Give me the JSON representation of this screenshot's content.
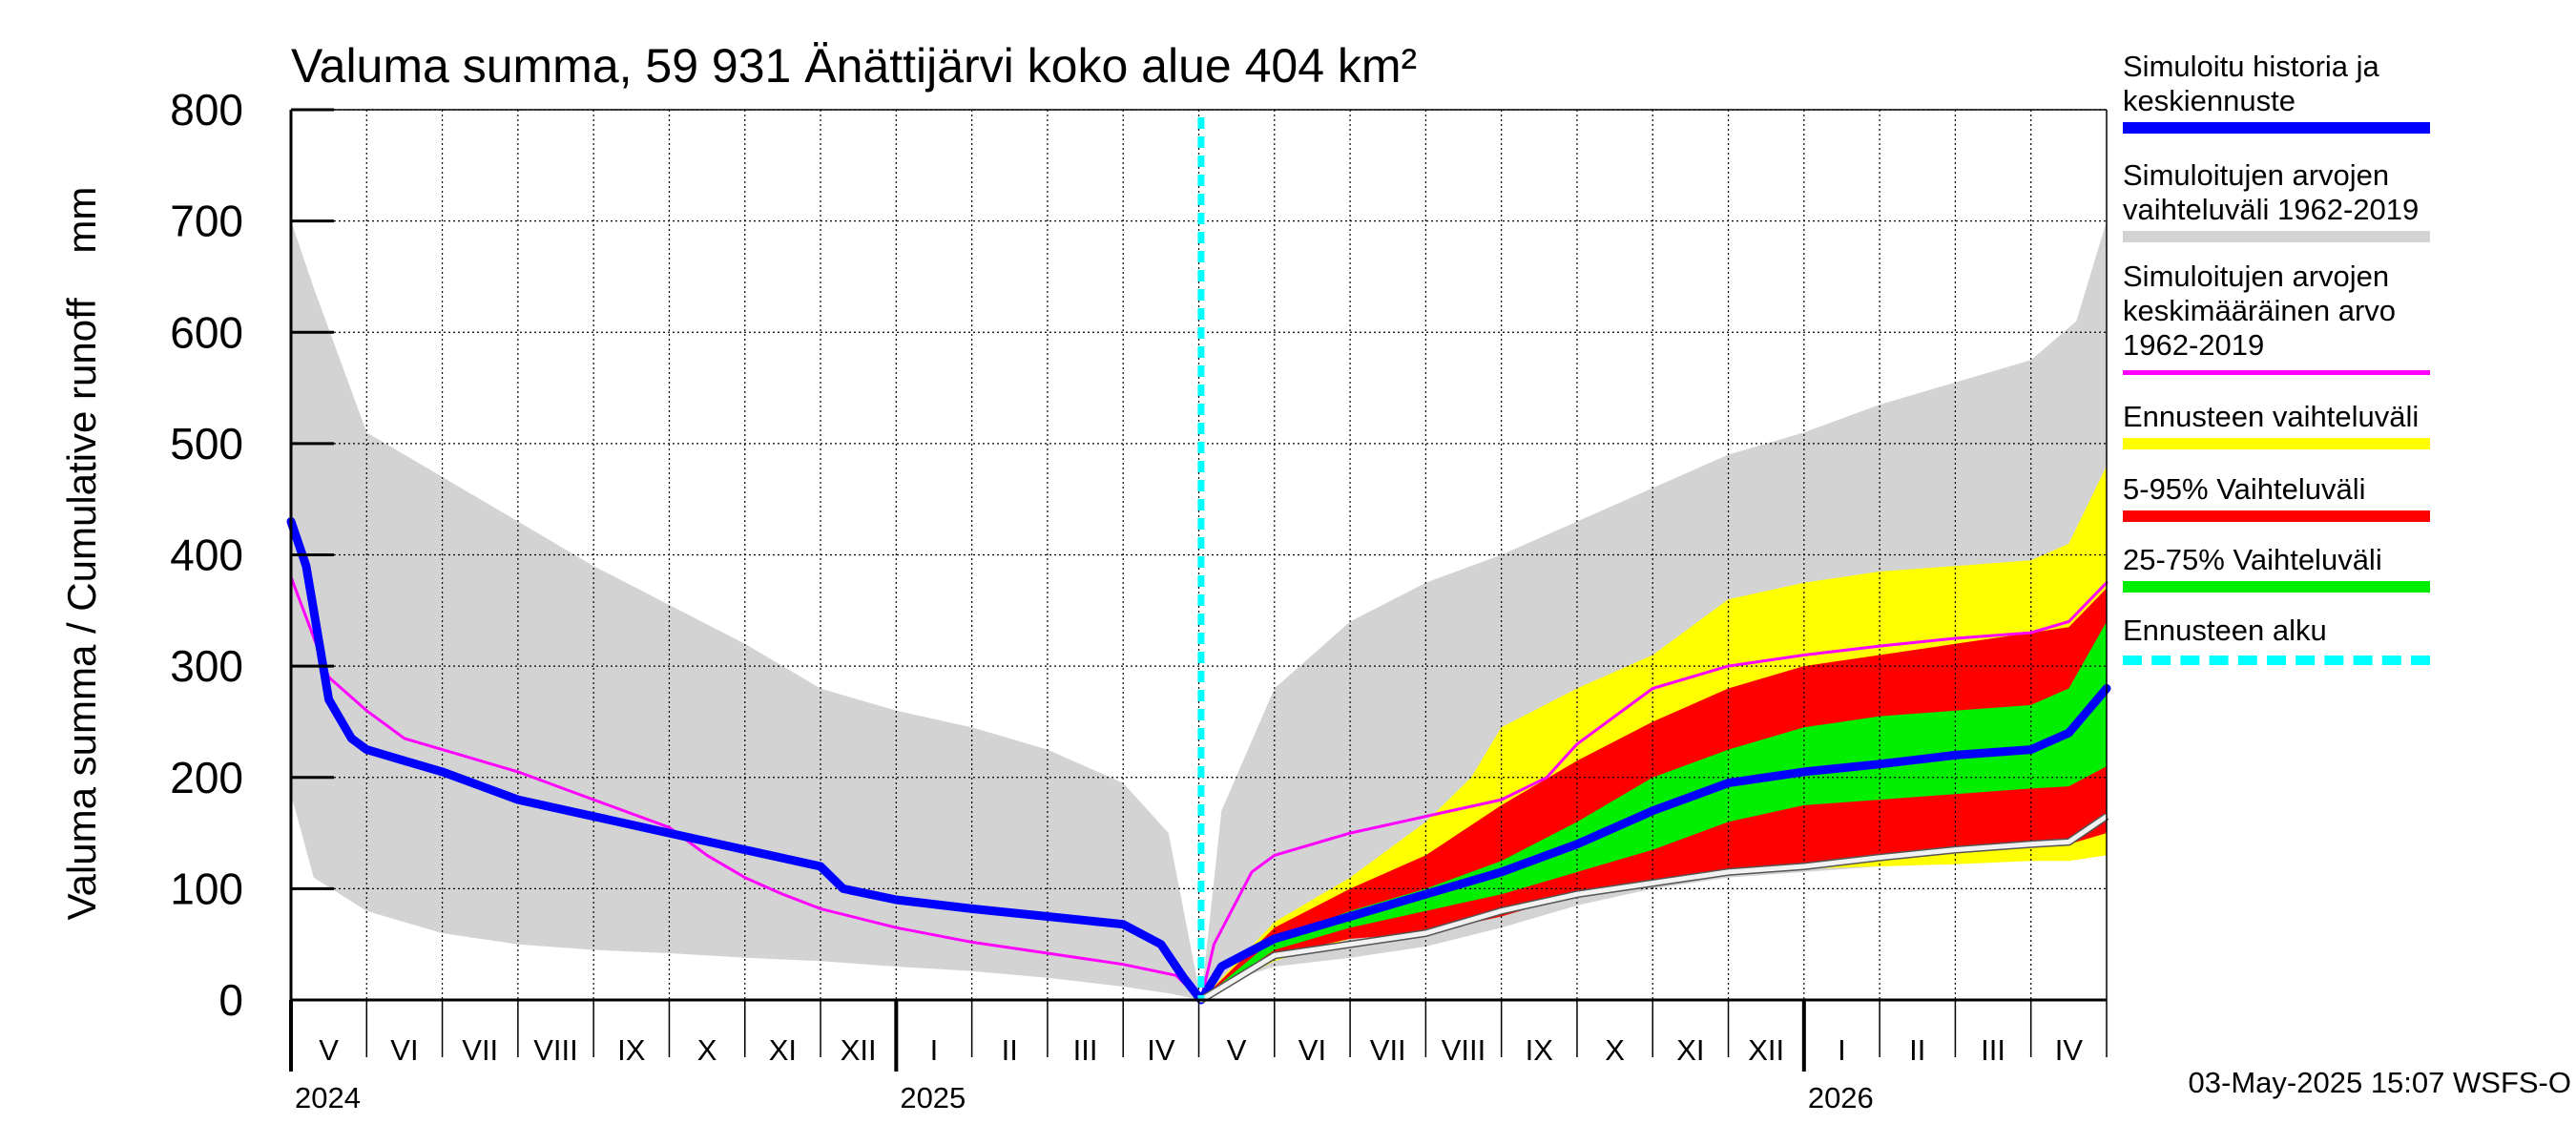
{
  "chart_data": {
    "type": "area",
    "title": "Valuma summa, 59 931 Änättijärvi koko alue 404 km²",
    "ylabel": "Valuma summa / Cumulative runoff    mm",
    "ylim": [
      0,
      800
    ],
    "yticks": [
      0,
      100,
      200,
      300,
      400,
      500,
      600,
      700,
      800
    ],
    "x_unit": "months since 2024-04-01",
    "xlim": [
      0,
      24
    ],
    "forecast_start": 12.03,
    "month_labels": [
      "V",
      "VI",
      "VII",
      "VIII",
      "IX",
      "X",
      "XI",
      "XII",
      "I",
      "II",
      "III",
      "IV",
      "V",
      "VI",
      "VII",
      "VIII",
      "IX",
      "X",
      "XI",
      "XII",
      "I",
      "II",
      "III",
      "IV"
    ],
    "year_labels": [
      {
        "label": "2024",
        "x": 0
      },
      {
        "label": "2025",
        "x": 8
      },
      {
        "label": "2026",
        "x": 20
      }
    ],
    "timestamp": "03-May-2025 15:07 WSFS-O",
    "series": [
      {
        "name": "Simuloitujen arvojen vaihteluväli 1962-2019",
        "kind": "band",
        "color": "#d3d3d3",
        "x": [
          0,
          0.3,
          1,
          2,
          3,
          4,
          5,
          6,
          7,
          8,
          9,
          10,
          11,
          11.6,
          12.03,
          12.3,
          13,
          14,
          15,
          16,
          17,
          18,
          19,
          20,
          21,
          22,
          23,
          23.6,
          24
        ],
        "upper": [
          700,
          640,
          510,
          470,
          430,
          390,
          355,
          320,
          280,
          260,
          245,
          225,
          195,
          150,
          0,
          170,
          280,
          340,
          375,
          400,
          430,
          460,
          490,
          510,
          535,
          555,
          575,
          610,
          700
        ],
        "lower": [
          185,
          110,
          80,
          60,
          50,
          45,
          42,
          38,
          35,
          30,
          26,
          20,
          12,
          6,
          0,
          15,
          30,
          38,
          48,
          65,
          85,
          100,
          110,
          115,
          120,
          125,
          130,
          135,
          140
        ]
      },
      {
        "name": "Ennusteen vaihteluväli",
        "kind": "band",
        "color": "#ffff00",
        "x": [
          12.03,
          13,
          14,
          15,
          15.6,
          16,
          17,
          18,
          19,
          20,
          21,
          22,
          23,
          23.5,
          24
        ],
        "upper": [
          0,
          70,
          110,
          160,
          200,
          245,
          280,
          310,
          360,
          375,
          385,
          390,
          395,
          410,
          480
        ],
        "lower": [
          0,
          35,
          55,
          65,
          75,
          80,
          100,
          110,
          115,
          118,
          120,
          122,
          125,
          125,
          130
        ]
      },
      {
        "name": "5-95% Vaihteluväli",
        "kind": "band",
        "color": "#ff0000",
        "x": [
          12.03,
          13,
          14,
          15,
          16,
          17,
          18,
          19,
          20,
          21,
          22,
          23,
          23.5,
          24
        ],
        "upper": [
          0,
          65,
          100,
          130,
          175,
          215,
          250,
          280,
          300,
          310,
          320,
          330,
          335,
          370
        ],
        "lower": [
          0,
          40,
          55,
          60,
          75,
          95,
          105,
          115,
          122,
          128,
          133,
          138,
          140,
          150
        ]
      },
      {
        "name": "25-75% Vaihteluväli",
        "kind": "band",
        "color": "#00ee00",
        "x": [
          12.03,
          13,
          14,
          15,
          16,
          17,
          18,
          19,
          20,
          21,
          22,
          23,
          23.5,
          24
        ],
        "upper": [
          0,
          55,
          80,
          100,
          125,
          160,
          200,
          225,
          245,
          255,
          260,
          265,
          280,
          340
        ],
        "lower": [
          0,
          45,
          65,
          80,
          95,
          115,
          135,
          160,
          175,
          180,
          185,
          190,
          192,
          210
        ]
      },
      {
        "name": "Simuloitujen arvojen keskimääräinen arvo 1962-2019",
        "kind": "line",
        "color": "#ff00ff",
        "width": 3,
        "x": [
          0,
          0.5,
          1,
          1.5,
          2,
          3,
          4,
          5,
          5.5,
          6,
          6.5,
          7,
          8,
          9,
          10,
          11,
          11.7,
          12.03,
          12.2,
          12.7,
          13,
          14,
          15,
          16,
          16.6,
          17,
          18,
          19,
          20,
          21,
          22,
          23,
          23.5,
          24
        ],
        "y": [
          380,
          290,
          260,
          235,
          225,
          205,
          180,
          155,
          130,
          110,
          95,
          82,
          65,
          52,
          42,
          32,
          22,
          0,
          50,
          115,
          130,
          150,
          165,
          180,
          200,
          230,
          280,
          300,
          310,
          318,
          325,
          330,
          340,
          375
        ]
      },
      {
        "name": "Simuloitu historia ja keskiennuste",
        "kind": "line",
        "color": "#0000ff",
        "width": 9,
        "x": [
          0,
          0.2,
          0.5,
          0.8,
          1,
          1.5,
          2,
          3,
          4,
          5,
          6,
          7,
          7.3,
          8,
          9,
          10,
          11,
          11.5,
          11.8,
          12.03,
          12.3,
          13,
          14,
          15,
          16,
          17,
          18,
          19,
          20,
          21,
          22,
          23,
          23.5,
          24
        ],
        "y": [
          430,
          390,
          270,
          235,
          225,
          215,
          205,
          180,
          165,
          150,
          135,
          120,
          100,
          90,
          82,
          75,
          68,
          50,
          20,
          0,
          30,
          55,
          75,
          95,
          115,
          140,
          170,
          195,
          205,
          212,
          220,
          225,
          240,
          280
        ]
      },
      {
        "name": "forecast lower reference",
        "kind": "line",
        "color": "#f2f2f2",
        "width": 5,
        "outline": "#555555",
        "x": [
          12.03,
          13,
          14,
          15,
          16,
          17,
          18,
          19,
          20,
          21,
          22,
          23,
          23.5,
          24
        ],
        "y": [
          0,
          40,
          50,
          60,
          80,
          95,
          105,
          115,
          120,
          128,
          135,
          140,
          142,
          165
        ]
      }
    ]
  },
  "legend": {
    "items": [
      {
        "label": "Simuloitu historia ja\nkeskiennuste",
        "color": "#0000ff",
        "style": "thick"
      },
      {
        "label": "Simuloitujen arvojen\nvaihteluväli 1962-2019",
        "color": "#d3d3d3",
        "style": "thick"
      },
      {
        "label": "Simuloitujen arvojen\nkeskimääräinen arvo\n   1962-2019",
        "color": "#ff00ff",
        "style": "thin"
      },
      {
        "label": "Ennusteen vaihteluväli",
        "color": "#ffff00",
        "style": "thick"
      },
      {
        "label": "5-95% Vaihteluväli",
        "color": "#ff0000",
        "style": "thick"
      },
      {
        "label": "25-75% Vaihteluväli",
        "color": "#00ee00",
        "style": "thick"
      },
      {
        "label": "Ennusteen alku",
        "color": "#00ffff",
        "style": "dashed"
      }
    ]
  }
}
